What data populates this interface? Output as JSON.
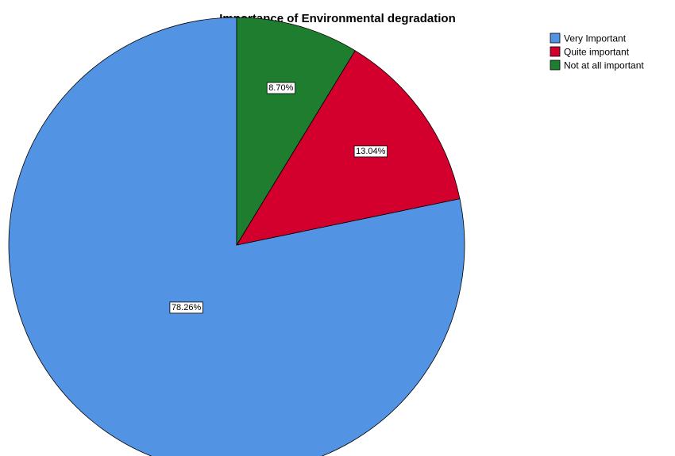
{
  "chart_data": {
    "type": "pie",
    "title": "Importance of Environmental degradation",
    "categories": [
      "Very Important",
      "Quite important",
      "Not at all important"
    ],
    "values": [
      78.26,
      13.04,
      8.7
    ],
    "data_labels": [
      "78.26%",
      "13.04%",
      "8.70%"
    ],
    "colors": [
      "#5393E4",
      "#D3002D",
      "#1E7D2E"
    ],
    "start_angle_deg": 0,
    "direction": "counterclockwise",
    "legend": {
      "position": "top-right",
      "entries": [
        "Very Important",
        "Quite important",
        "Not at all important"
      ]
    }
  }
}
